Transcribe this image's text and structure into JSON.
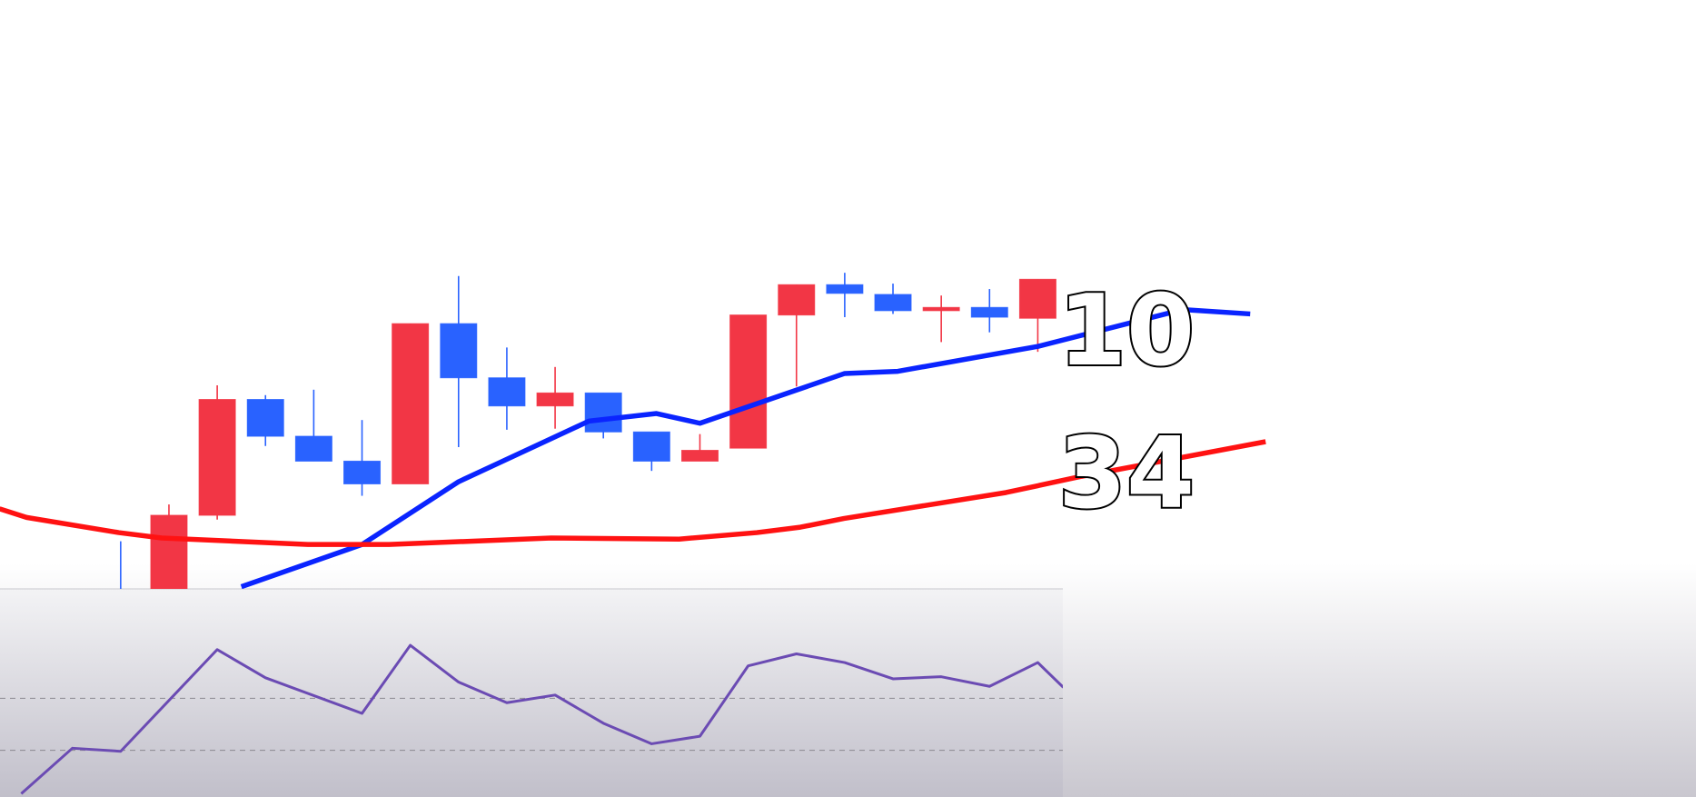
{
  "chart_data": {
    "type": "candlestick",
    "xlim": [
      -2.5,
      24.6
    ],
    "ylim": [
      14,
      150
    ],
    "up_color": "#f23645",
    "down_color": "#2962ff",
    "x": [
      0,
      1,
      2,
      3,
      4,
      5,
      6,
      7,
      8,
      9,
      10,
      11,
      12,
      13,
      14,
      15,
      16,
      17,
      18,
      19
    ],
    "open": [
      13,
      12,
      31,
      57.75,
      49.25,
      43.5,
      38.25,
      75.25,
      62.75,
      56.25,
      59.25,
      50.25,
      43.5,
      46.5,
      77.25,
      84.25,
      82,
      78.25,
      79,
      76.5
    ],
    "high": [
      25,
      33.5,
      61,
      58.75,
      60,
      53,
      75.25,
      86.25,
      69.75,
      65.25,
      59.25,
      50.25,
      49.75,
      77.25,
      84.25,
      87,
      84.5,
      81.75,
      83.25,
      85.5
    ],
    "low": [
      10,
      10,
      30,
      47,
      43.5,
      35.5,
      38.25,
      46.75,
      50.75,
      51,
      48.75,
      41.25,
      43.5,
      46.5,
      60.75,
      76.75,
      77.5,
      71,
      73.25,
      68.75
    ],
    "close": [
      11,
      31,
      57.75,
      49.25,
      43.5,
      38.25,
      75.25,
      62.75,
      56.25,
      59.25,
      50.25,
      43.5,
      46,
      77.25,
      84.25,
      82.25,
      78.25,
      79,
      76.75,
      85.5
    ],
    "series": [
      {
        "name": "10",
        "color": "#0a24ff",
        "x": [
          2.5,
          5,
          7,
          9.7,
          11.1,
          12,
          15,
          16.1,
          19,
          22,
          23.4
        ],
        "values": [
          14.5,
          24.25,
          38.75,
          52.75,
          54.5,
          52.25,
          63.75,
          64.25,
          70,
          78.5,
          77.5
        ]
      },
      {
        "name": "34",
        "color": "#ff1212",
        "x": [
          -2.51,
          -1.95,
          -0.04,
          0.85,
          3.88,
          5.56,
          8.92,
          11.57,
          13.18,
          14.08,
          14.98,
          18.34,
          19.91,
          23.72
        ],
        "values": [
          32.5,
          30.5,
          27,
          25.75,
          24.25,
          24.25,
          25.75,
          25.5,
          27,
          28.25,
          30.25,
          36.25,
          40,
          48
        ]
      }
    ],
    "rsi": {
      "color": "#6b4bb3",
      "ylim": [
        0,
        100
      ],
      "levels": [
        40,
        60
      ],
      "x": [
        -2.06,
        -1,
        0,
        2,
        3,
        5,
        6,
        7,
        8,
        9,
        10,
        11,
        12,
        13,
        14,
        15,
        16,
        17,
        18,
        19,
        19.53
      ],
      "values": [
        23.3,
        40.8,
        39.6,
        78.75,
        67.9,
        54.2,
        80.4,
        66.25,
        58.3,
        61.25,
        50.4,
        42.5,
        45.4,
        72.5,
        77.1,
        73.75,
        67.5,
        68.3,
        64.6,
        73.75,
        64.2
      ]
    }
  }
}
